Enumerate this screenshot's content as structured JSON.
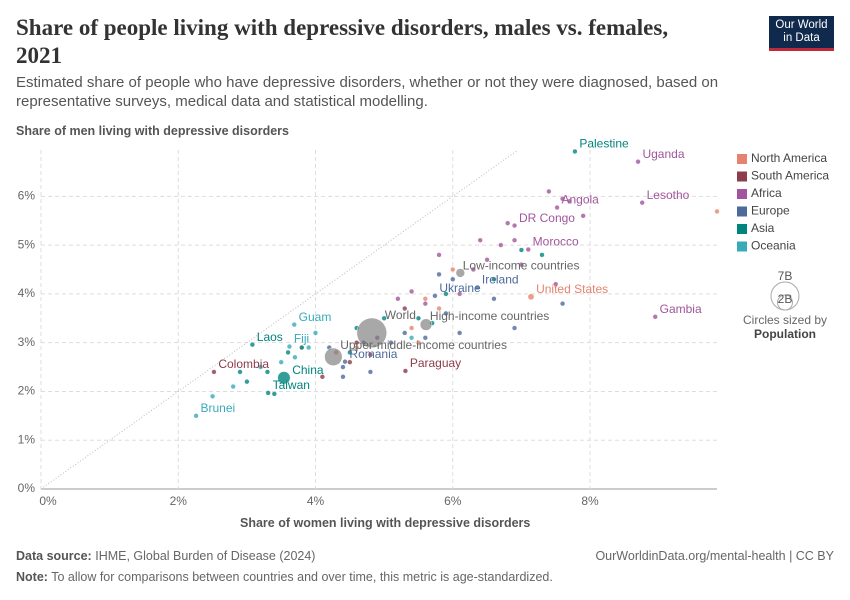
{
  "chart_data": {
    "type": "scatter",
    "title": "Share of people living with depressive disorders, males vs. females, 2021",
    "subtitle": "Estimated share of people who have depressive disorders, whether or not they were diagnosed, based on representative surveys, medical data and statistical modelling.",
    "logo": [
      "Our World",
      "in Data"
    ],
    "x_label": "Share of women living with depressive disorders",
    "y_label": "Share of men living with depressive disorders",
    "xlim": [
      0,
      9.85
    ],
    "ylim": [
      0,
      6.95
    ],
    "xticks": [
      {
        "value": 0,
        "label": "0%"
      },
      {
        "value": 2,
        "label": "2%"
      },
      {
        "value": 4,
        "label": "4%"
      },
      {
        "value": 6,
        "label": "6%"
      },
      {
        "value": 8,
        "label": "8%"
      }
    ],
    "yticks": [
      {
        "value": 0,
        "label": "0%"
      },
      {
        "value": 1,
        "label": "1%"
      },
      {
        "value": 2,
        "label": "2%"
      },
      {
        "value": 3,
        "label": "3%"
      },
      {
        "value": 4,
        "label": "4%"
      },
      {
        "value": 5,
        "label": "5%"
      },
      {
        "value": 6,
        "label": "6%"
      }
    ],
    "grid": true,
    "legend_position": "right",
    "size_legend": {
      "title": "Circles sized by",
      "variable": "Population",
      "sizes": [
        {
          "value": 7,
          "label": "7B"
        },
        {
          "value": 2,
          "label": "2B"
        }
      ]
    },
    "series": [
      {
        "name": "North America",
        "color": "#e6836e",
        "labels": [
          "United States",
          null,
          null,
          null,
          null,
          null,
          null,
          null,
          null,
          null
        ],
        "x": [
          7.14,
          9.85,
          6.0,
          5.6,
          5.4,
          5.5,
          4.3,
          4.6,
          5.8,
          3.8
        ],
        "y": [
          3.94,
          5.69,
          4.5,
          3.9,
          3.3,
          3.0,
          2.8,
          2.9,
          3.7,
          2.9
        ],
        "size": [
          0.34,
          0.03,
          0.03,
          0.03,
          0.03,
          0.03,
          0.03,
          0.03,
          0.03,
          0.03
        ]
      },
      {
        "name": "South America",
        "color": "#8c3c4a",
        "labels": [
          "Colombia",
          "Paraguay",
          null,
          null,
          null,
          null,
          null
        ],
        "x": [
          2.52,
          5.31,
          4.6,
          4.8,
          5.3,
          4.1,
          4.5
        ],
        "y": [
          2.4,
          2.42,
          3.0,
          2.75,
          3.7,
          2.3,
          2.6
        ],
        "size": [
          0.05,
          0.01,
          0.03,
          0.03,
          0.03,
          0.03,
          0.03
        ]
      },
      {
        "name": "Africa",
        "color": "#a2559c",
        "labels": [
          "Uganda",
          "Lesotho",
          "Angola",
          "DR Congo",
          "Morocco",
          "Gambia",
          null,
          null,
          null,
          null,
          null,
          null,
          null,
          null,
          null,
          null,
          null,
          null,
          null,
          null,
          null,
          null,
          null,
          null
        ],
        "x": [
          8.7,
          8.76,
          7.52,
          6.9,
          7.1,
          8.95,
          7.4,
          7.6,
          7.9,
          7.7,
          6.4,
          6.7,
          6.8,
          7.0,
          6.9,
          5.8,
          6.3,
          6.5,
          5.4,
          5.2,
          6.1,
          7.5,
          4.9,
          5.6
        ],
        "y": [
          6.71,
          5.87,
          5.77,
          5.4,
          4.91,
          3.53,
          6.1,
          5.95,
          5.6,
          5.9,
          5.1,
          5.0,
          5.45,
          4.6,
          5.1,
          4.8,
          4.5,
          4.7,
          4.05,
          3.9,
          4.0,
          4.2,
          3.1,
          3.8
        ],
        "size": [
          0.05,
          0.01,
          0.04,
          0.1,
          0.04,
          0.01,
          0.03,
          0.03,
          0.03,
          0.03,
          0.03,
          0.03,
          0.03,
          0.03,
          0.03,
          0.03,
          0.03,
          0.03,
          0.03,
          0.03,
          0.03,
          0.03,
          0.03,
          0.03
        ]
      },
      {
        "name": "Europe",
        "color": "#4c6a9c",
        "labels": [
          "Ireland",
          "Ukraine",
          "Romania",
          null,
          null,
          null,
          null,
          null,
          null,
          null,
          null,
          null,
          null,
          null,
          null,
          null,
          null,
          null
        ],
        "x": [
          6.36,
          5.74,
          4.43,
          5.8,
          6.0,
          6.6,
          6.9,
          5.9,
          5.3,
          4.7,
          4.4,
          4.4,
          4.8,
          5.1,
          5.6,
          6.1,
          7.6,
          4.2
        ],
        "y": [
          4.13,
          3.96,
          2.61,
          4.4,
          4.3,
          3.9,
          3.3,
          3.6,
          3.2,
          3.0,
          2.5,
          2.3,
          2.4,
          3.0,
          3.1,
          3.2,
          3.8,
          2.9
        ],
        "size": [
          0.01,
          0.04,
          0.02,
          0.03,
          0.03,
          0.03,
          0.03,
          0.03,
          0.03,
          0.03,
          0.03,
          0.03,
          0.03,
          0.03,
          0.03,
          0.03,
          0.03,
          0.03
        ]
      },
      {
        "name": "Asia",
        "color": "#00847e",
        "labels": [
          "Palestine",
          "Laos",
          "China",
          "Taiwan",
          null,
          null,
          null,
          null,
          null,
          null,
          null,
          null,
          null,
          null,
          null,
          null,
          null,
          null,
          null
        ],
        "x": [
          7.78,
          3.08,
          3.54,
          3.31,
          7.0,
          7.3,
          6.6,
          5.9,
          5.7,
          5.5,
          3.3,
          3.0,
          2.9,
          3.6,
          3.8,
          4.5,
          3.4,
          5.0,
          4.6
        ],
        "y": [
          6.92,
          2.96,
          2.28,
          1.97,
          4.9,
          4.8,
          4.3,
          4.0,
          3.4,
          3.5,
          2.4,
          2.2,
          2.4,
          2.8,
          2.9,
          2.8,
          1.95,
          3.5,
          3.3
        ],
        "size": [
          0.01,
          0.01,
          1.4,
          0.02,
          0.03,
          0.03,
          0.03,
          0.03,
          0.03,
          0.03,
          0.03,
          0.03,
          0.03,
          0.03,
          0.03,
          0.03,
          0.03,
          0.03,
          0.03
        ]
      },
      {
        "name": "Oceania",
        "color": "#38aaba",
        "labels": [
          "Guam",
          "Fiji",
          "Brunei",
          null,
          null,
          null,
          null,
          null,
          null,
          null,
          null
        ],
        "x": [
          3.69,
          3.62,
          2.26,
          2.5,
          2.8,
          3.5,
          3.7,
          3.9,
          4.0,
          3.2,
          5.4
        ],
        "y": [
          3.37,
          2.92,
          1.5,
          1.9,
          2.1,
          2.6,
          2.7,
          2.9,
          3.2,
          2.5,
          3.1
        ],
        "size": [
          0.01,
          0.01,
          0.01,
          0.01,
          0.01,
          0.01,
          0.01,
          0.01,
          0.01,
          0.01,
          0.01
        ]
      }
    ],
    "aggregates": {
      "color": "#7a7a7a",
      "labels": [
        "World",
        "High-income countries",
        "Upper-middle-income countries",
        "Low-income countries"
      ],
      "x": [
        4.82,
        5.61,
        4.26,
        6.11
      ],
      "y": [
        3.2,
        3.37,
        2.71,
        4.43
      ],
      "size": [
        8.0,
        1.25,
        2.8,
        0.7
      ]
    },
    "source_label": "Data source:",
    "source": "IHME, Global Burden of Disease (2024)",
    "url": "OurWorldinData.org/mental-health | CC BY",
    "note_label": "Note:",
    "note": "To allow for comparisons between countries and over time, this metric is age-standardized."
  }
}
